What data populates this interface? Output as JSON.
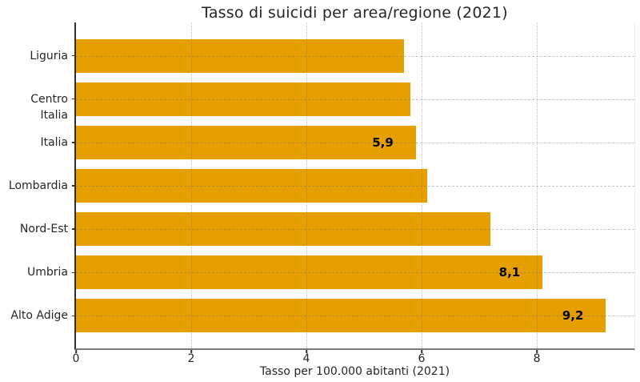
{
  "chart_data": {
    "type": "bar",
    "orientation": "horizontal",
    "title": "Tasso di suicidi per area/regione (2021)",
    "xlabel": "Tasso per 100.000 abitanti (2021)",
    "categories": [
      "Liguria",
      "Centro Italia",
      "Italia",
      "Lombardia",
      "Nord-Est",
      "Umbria",
      "Alto Adige"
    ],
    "values": [
      5.7,
      5.8,
      5.9,
      6.1,
      7.2,
      8.1,
      9.2
    ],
    "value_labels": [
      "",
      "",
      "5,9",
      "",
      "",
      "8,1",
      "9,2"
    ],
    "x_ticks": [
      0,
      2,
      4,
      6,
      8
    ],
    "xlim": [
      0,
      9.68
    ],
    "grid": "vertical-dotted-at-ticks, horizontal-dashed-at-rows",
    "legend": "none",
    "colors": {
      "bar": "#E69F00",
      "axis_text": "#262626",
      "value_label": "#000000",
      "left_spine": "#2e2e2e",
      "bottom_spine": "#7a7a7a"
    }
  }
}
